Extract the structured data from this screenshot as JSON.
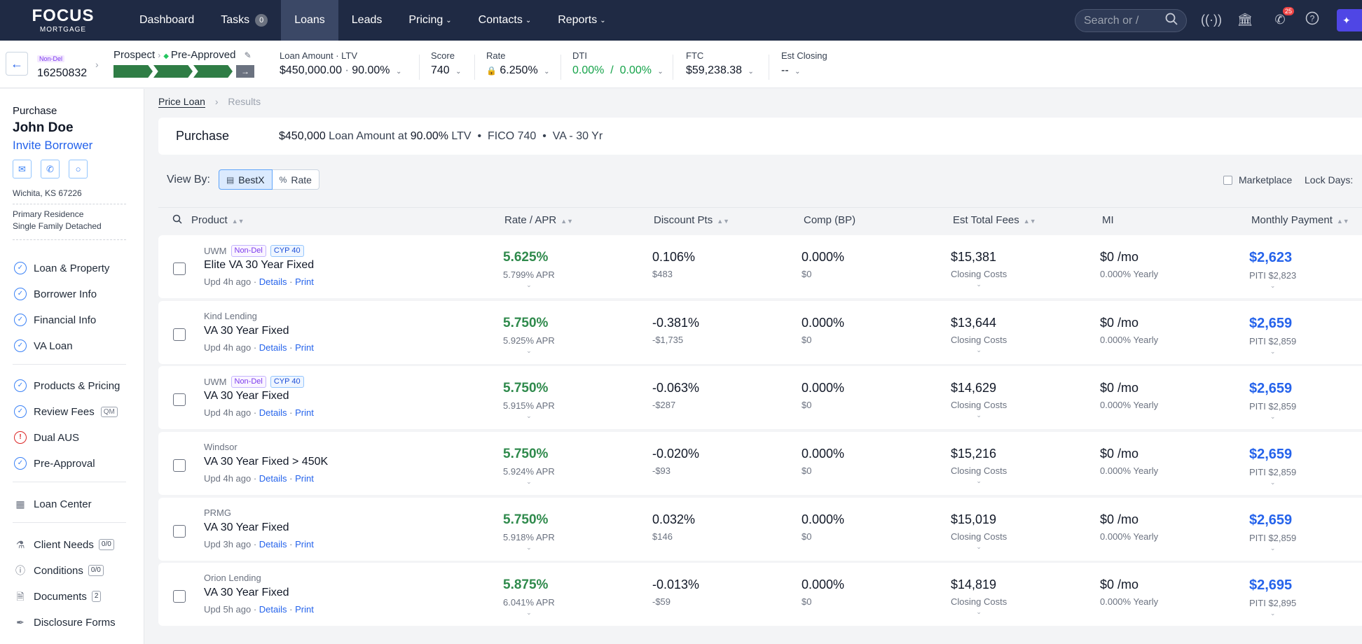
{
  "nav": {
    "logo_line1": "FOCUS",
    "logo_line2": "MORTGAGE",
    "items": [
      {
        "label": "Dashboard"
      },
      {
        "label": "Tasks",
        "badge": "0"
      },
      {
        "label": "Loans"
      },
      {
        "label": "Leads"
      },
      {
        "label": "Pricing"
      },
      {
        "label": "Contacts"
      },
      {
        "label": "Reports"
      }
    ],
    "search_placeholder": "Search or /",
    "notification_count": "25"
  },
  "loan_header": {
    "badge": "Non-Del",
    "loan_number": "16250832",
    "stage_from": "Prospect",
    "stage_current": "Pre-Approved",
    "loan_amount_label": "Loan Amount · LTV",
    "loan_amount": "$450,000.00",
    "ltv": "90.00%",
    "score_label": "Score",
    "score": "740",
    "rate_label": "Rate",
    "rate": "6.250%",
    "dti_label": "DTI",
    "dti": "0.00%  /  0.00%",
    "ftc_label": "FTC",
    "ftc": "$59,238.38",
    "closing_label": "Est Closing",
    "closing": "--"
  },
  "sidebar": {
    "purpose": "Purchase",
    "borrower_name": "John Doe",
    "invite": "Invite Borrower",
    "address": "Wichita, KS 67226",
    "occupancy": "Primary Residence",
    "property_type": "Single Family Detached",
    "group1": [
      "Loan & Property",
      "Borrower Info",
      "Financial Info",
      "VA Loan"
    ],
    "group2": [
      "Products & Pricing",
      "Review Fees",
      "Dual AUS",
      "Pre-Approval"
    ],
    "review_fees_tag": "QM",
    "loan_center": "Loan Center",
    "client_needs": "Client Needs",
    "client_needs_count": "0/0",
    "conditions": "Conditions",
    "conditions_count": "0/0",
    "documents": "Documents",
    "documents_count": "2",
    "disclosure": "Disclosure Forms"
  },
  "breadcrumb": {
    "current": "Price Loan",
    "next": "Results"
  },
  "summary": {
    "purpose": "Purchase",
    "amount": "$450,000",
    "amount_suffix": " Loan Amount at ",
    "ltv": "90.00%",
    "ltv_suffix": " LTV  •  FICO 740  •  VA - 30 Yr"
  },
  "view_by": {
    "label": "View By:",
    "options": [
      "BestX",
      "Rate"
    ],
    "selected": "BestX"
  },
  "marketplace_label": "Marketplace",
  "lock_days_label": "Lock Days:",
  "columns": [
    "Product",
    "Rate / APR",
    "Discount Pts",
    "Comp (BP)",
    "Est Total Fees",
    "MI",
    "Monthly Payment"
  ],
  "row_links": {
    "details": "Details",
    "print": "Print"
  },
  "rows": [
    {
      "lender": "UWM",
      "nondel": "Non-Del",
      "cyp": "CYP 40",
      "product": "Elite VA 30 Year Fixed",
      "updated": "Upd 4h ago",
      "rate": "5.625%",
      "apr": "5.799% APR",
      "disc": "0.106%",
      "disc_amt": "$483",
      "comp": "0.000%",
      "comp_amt": "$0",
      "fees": "$15,381",
      "fees_sub": "Closing Costs",
      "mi": "$0 /mo",
      "mi_sub": "0.000% Yearly",
      "payment": "$2,623",
      "piti": "PITI $2,823"
    },
    {
      "lender": "Kind Lending",
      "nondel": "",
      "cyp": "",
      "product": "VA 30 Year Fixed",
      "updated": "Upd 4h ago",
      "rate": "5.750%",
      "apr": "5.925% APR",
      "disc": "-0.381%",
      "disc_amt": "-$1,735",
      "comp": "0.000%",
      "comp_amt": "$0",
      "fees": "$13,644",
      "fees_sub": "Closing Costs",
      "mi": "$0 /mo",
      "mi_sub": "0.000% Yearly",
      "payment": "$2,659",
      "piti": "PITI $2,859"
    },
    {
      "lender": "UWM",
      "nondel": "Non-Del",
      "cyp": "CYP 40",
      "product": "VA 30 Year Fixed",
      "updated": "Upd 4h ago",
      "rate": "5.750%",
      "apr": "5.915% APR",
      "disc": "-0.063%",
      "disc_amt": "-$287",
      "comp": "0.000%",
      "comp_amt": "$0",
      "fees": "$14,629",
      "fees_sub": "Closing Costs",
      "mi": "$0 /mo",
      "mi_sub": "0.000% Yearly",
      "payment": "$2,659",
      "piti": "PITI $2,859"
    },
    {
      "lender": "Windsor",
      "nondel": "",
      "cyp": "",
      "product": "VA 30 Year Fixed > 450K",
      "updated": "Upd 4h ago",
      "rate": "5.750%",
      "apr": "5.924% APR",
      "disc": "-0.020%",
      "disc_amt": "-$93",
      "comp": "0.000%",
      "comp_amt": "$0",
      "fees": "$15,216",
      "fees_sub": "Closing Costs",
      "mi": "$0 /mo",
      "mi_sub": "0.000% Yearly",
      "payment": "$2,659",
      "piti": "PITI $2,859"
    },
    {
      "lender": "PRMG",
      "nondel": "",
      "cyp": "",
      "product": "VA 30 Year Fixed",
      "updated": "Upd 3h ago",
      "rate": "5.750%",
      "apr": "5.918% APR",
      "disc": "0.032%",
      "disc_amt": "$146",
      "comp": "0.000%",
      "comp_amt": "$0",
      "fees": "$15,019",
      "fees_sub": "Closing Costs",
      "mi": "$0 /mo",
      "mi_sub": "0.000% Yearly",
      "payment": "$2,659",
      "piti": "PITI $2,859"
    },
    {
      "lender": "Orion Lending",
      "nondel": "",
      "cyp": "",
      "product": "VA 30 Year Fixed",
      "updated": "Upd 5h ago",
      "rate": "5.875%",
      "apr": "6.041% APR",
      "disc": "-0.013%",
      "disc_amt": "-$59",
      "comp": "0.000%",
      "comp_amt": "$0",
      "fees": "$14,819",
      "fees_sub": "Closing Costs",
      "mi": "$0 /mo",
      "mi_sub": "0.000% Yearly",
      "payment": "$2,695",
      "piti": "PITI $2,895"
    }
  ],
  "colors": {
    "nav_bg": "#1f2a44",
    "rate_green": "#2f8a4c",
    "link_blue": "#2563eb",
    "progress_green": "#2f7d45"
  },
  "icons": [
    "search-icon",
    "broadcast-icon",
    "bank-icon",
    "megaphone-icon",
    "help-icon",
    "mail-icon",
    "phone-icon",
    "chat-icon",
    "check-circle-icon",
    "alert-circle-icon",
    "lock-icon"
  ]
}
